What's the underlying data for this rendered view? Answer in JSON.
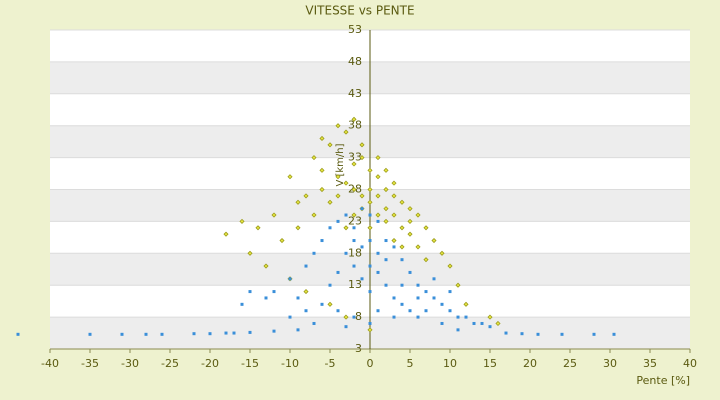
{
  "chart_data": {
    "type": "scatter",
    "title": "VITESSE vs PENTE",
    "x_label": "Pente [%]",
    "y_label": "V [km/h]",
    "xlim": [
      -40,
      40
    ],
    "xticks": [
      -40,
      -35,
      -30,
      -25,
      -20,
      -15,
      -10,
      -5,
      0,
      5,
      10,
      15,
      20,
      25,
      30,
      35,
      40
    ],
    "ylim": [
      3,
      53
    ],
    "yticks": [
      3,
      8,
      13,
      18,
      23,
      28,
      33,
      38,
      43,
      48,
      53
    ],
    "grid": true,
    "series": [
      {
        "color": "#9c9c1c",
        "x": [
          -10,
          -8,
          -7,
          -6,
          -5,
          -4,
          -3,
          -2,
          -1,
          0,
          1,
          2,
          3,
          4,
          5,
          6,
          7,
          8,
          9,
          10,
          -12,
          -14,
          -16,
          -18,
          -15,
          -11,
          -9,
          -7,
          -6,
          -5,
          -4,
          -3,
          -2,
          -1,
          0,
          1,
          2,
          3,
          4,
          5,
          6,
          -3,
          -2,
          -1,
          0,
          1,
          2,
          3,
          4,
          -13,
          -10,
          -8,
          -5,
          -3,
          12,
          15,
          16,
          0,
          -1,
          1,
          -6,
          2,
          -2,
          -4,
          -9,
          3,
          5,
          7,
          11,
          0
        ],
        "values": [
          30,
          27,
          33,
          36,
          35,
          38,
          37,
          39,
          33,
          31,
          30,
          28,
          27,
          26,
          25,
          24,
          22,
          20,
          18,
          16,
          24,
          22,
          23,
          21,
          18,
          20,
          22,
          24,
          28,
          26,
          30,
          29,
          28,
          27,
          26,
          27,
          25,
          24,
          22,
          21,
          19,
          22,
          24,
          25,
          28,
          24,
          23,
          20,
          19,
          16,
          14,
          12,
          10,
          8,
          10,
          8,
          7,
          6,
          35,
          33,
          31,
          31,
          32,
          27,
          26,
          29,
          23,
          17,
          13,
          22
        ]
      },
      {
        "color": "#3a8fd9",
        "x": [
          -44,
          -35,
          -31,
          -28,
          -26,
          -22,
          -20,
          -18,
          -17,
          -15,
          -12,
          -9,
          17,
          19,
          21,
          24,
          28,
          30.5,
          -12,
          -10,
          -8,
          -7,
          -6,
          -5,
          -4,
          -3,
          -2,
          -1,
          0,
          1,
          2,
          3,
          4,
          5,
          6,
          7,
          8,
          9,
          10,
          11,
          12,
          13,
          14,
          15,
          -3,
          -2,
          -1,
          0,
          1,
          2,
          3,
          4,
          5,
          6,
          -1,
          0,
          1,
          2,
          -4,
          -5,
          -6,
          -8,
          -10,
          -13,
          -15,
          -16,
          -4,
          -2,
          0,
          1,
          3,
          7,
          9,
          11,
          -7,
          -3,
          0,
          -2,
          4,
          6,
          8,
          10,
          -9
        ],
        "values": [
          5.3,
          5.3,
          5.3,
          5.3,
          5.3,
          5.4,
          5.4,
          5.5,
          5.5,
          5.6,
          5.8,
          6,
          5.5,
          5.4,
          5.3,
          5.3,
          5.3,
          5.3,
          12,
          14,
          16,
          18,
          20,
          22,
          23,
          24,
          22,
          25,
          24,
          23,
          20,
          19,
          17,
          15,
          13,
          12,
          11,
          10,
          9,
          8,
          8,
          7,
          7,
          6.5,
          18,
          16,
          14,
          12,
          15,
          13,
          11,
          10,
          9,
          8,
          19,
          20,
          18,
          17,
          15,
          13,
          10,
          9,
          8,
          11,
          12,
          10,
          9,
          8,
          7,
          9,
          8,
          9,
          7,
          6,
          7,
          6.5,
          16,
          20,
          13,
          11,
          14,
          12,
          11
        ]
      }
    ]
  }
}
